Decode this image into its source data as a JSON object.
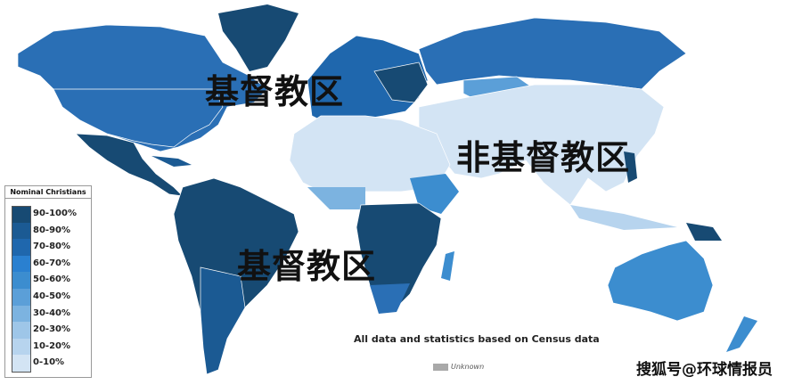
{
  "labels": {
    "christian_region_north": "基督教区",
    "christian_region_south": "基督教区",
    "non_christian_region": "非基督教区"
  },
  "legend": {
    "title": "Nominal Christians",
    "items": [
      {
        "label": "90-100%",
        "color": "#174a73"
      },
      {
        "label": "80-90%",
        "color": "#1b5a93"
      },
      {
        "label": "70-80%",
        "color": "#1f67ad"
      },
      {
        "label": "60-70%",
        "color": "#2a80d0"
      },
      {
        "label": "50-60%",
        "color": "#3c8dcf"
      },
      {
        "label": "40-50%",
        "color": "#5b9fd8"
      },
      {
        "label": "30-40%",
        "color": "#7cb3e0"
      },
      {
        "label": "20-30%",
        "color": "#9ec6e8"
      },
      {
        "label": "10-20%",
        "color": "#b7d4ee"
      },
      {
        "label": "0-10%",
        "color": "#d3e4f4"
      }
    ]
  },
  "note": "All data and statistics based on Census data",
  "unknown": {
    "label": "Unknown",
    "color": "#a9a9a9"
  },
  "watermark": "搜狐号@环球情报员"
}
